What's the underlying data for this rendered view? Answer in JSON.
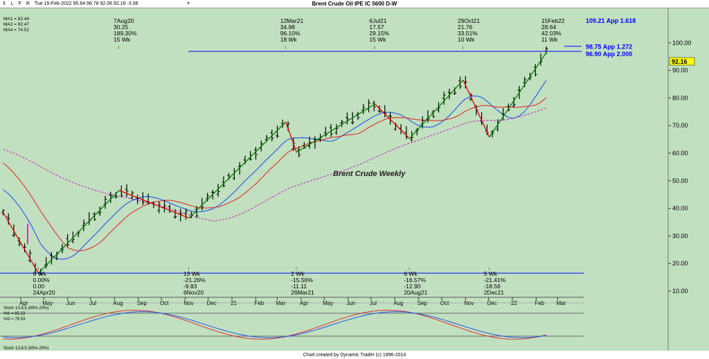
{
  "window": {
    "title": "Brent Crude Oil IPE IC 5600 D-W",
    "toolbar_items": [
      "L",
      "F",
      "R"
    ],
    "bar_info": "Tue 15-Feb-2022   95.64   96.78   92.06   92.16   -3.08"
  },
  "legend": {
    "ma1_label": "MA1 = 82.44",
    "ma2_label": "MA2 = 82.47",
    "ma4_label": "MA4 = 74.52",
    "stoch_title": "Stoch 13,8,5 (80%-20%)",
    "k_label": "%K = 85.23",
    "d_label": "%D = 79.53",
    "stoch_bottom": "Stoch 13,8,5 (80%-20%)"
  },
  "colors": {
    "background": "#c1e0bf",
    "up_swing": "#008000",
    "down_swing": "#e00000",
    "ma1": "#2255ee",
    "ma2": "#e03030",
    "ma4": "#c030c0",
    "level_line": "#0000ff",
    "price_tag": "#ffff00"
  },
  "price_tag": "92.16",
  "footer": "Chart created by Dynamic Trader  (c) 1996-2014",
  "chart_data": {
    "type": "ohlc",
    "title": "Brent Crude Weekly",
    "y_range": [
      8,
      112
    ],
    "y_ticks": [
      "10.00",
      "20.00",
      "30.00",
      "40.00",
      "50.00",
      "60.00",
      "70.00",
      "80.00",
      "90.00",
      "100.00"
    ],
    "x_tick_labels": [
      "Apr",
      "May",
      "Jun",
      "Jul",
      "Aug",
      "Sep",
      "Oct",
      "Nov",
      "Dec",
      "21",
      "Feb",
      "Mar",
      "Apr",
      "May",
      "Jun",
      "Jul",
      "Aug",
      "Sep",
      "Oct",
      "Nov",
      "Dec",
      "22",
      "Feb",
      "Mar"
    ],
    "last_close": 92.16,
    "level_lines": [
      {
        "price": 98.75,
        "label": "98.75 App 1.272",
        "extends_left": false
      },
      {
        "price": 96.9,
        "label": "96.90 App 2.000",
        "extends_left": true
      },
      {
        "price": 16.5,
        "label": "",
        "extends_left": true
      }
    ],
    "top_clipped_label": "109.21 App 1.618",
    "swing_points": [
      {
        "date": "9-Mar-2020",
        "price": 38.5
      },
      {
        "date": "24-Apr-2020",
        "price": 16.5
      },
      {
        "date": "7-Aug-2020",
        "price": 46.5
      },
      {
        "date": "6-Nov-2020",
        "price": 36.5
      },
      {
        "date": "12-Mar-2021",
        "price": 71.3
      },
      {
        "date": "26-Mar-2021",
        "price": 60.3
      },
      {
        "date": "6-Jul-2021",
        "price": 77.8
      },
      {
        "date": "20-Aug-2021",
        "price": 65.3
      },
      {
        "date": "29-Oct-2021",
        "price": 86.5
      },
      {
        "date": "2-Dec-2021",
        "price": 65.8
      },
      {
        "date": "15-Feb-2022",
        "price": 96.8
      }
    ],
    "high_annotations": [
      {
        "lines": [
          "7Aug20",
          "30.25",
          "189.30%",
          "15 Wk"
        ]
      },
      {
        "lines": [
          "12Mar21",
          "34.98",
          "96.10%",
          "18 Wk"
        ]
      },
      {
        "lines": [
          "6Jul21",
          "17.57",
          "29.15%",
          "15 Wk"
        ]
      },
      {
        "lines": [
          "29Oct21",
          "21.76",
          "33.51%",
          "10 Wk"
        ]
      },
      {
        "lines": [
          "15Feb22",
          "28.64",
          "42.03%",
          "11 Wk"
        ]
      }
    ],
    "low_annotations": [
      {
        "lines": [
          "0 Wk",
          "0.00%",
          "0.00",
          "24Apr20"
        ]
      },
      {
        "lines": [
          "13 Wk",
          "-21.26%",
          "-9.83",
          "6Nov20"
        ]
      },
      {
        "lines": [
          "2 Wk",
          "-15.56%",
          "-11.11",
          "26Mar21"
        ]
      },
      {
        "lines": [
          "6 Wk",
          "-16.57%",
          "-12.90",
          "20Aug21"
        ]
      },
      {
        "lines": [
          "5 Wk",
          "-21.41%",
          "-18.56",
          "2Dec21"
        ]
      }
    ],
    "bars_note": "weekly OHLC bars interpolated along swing path",
    "ma1_current": 82.44,
    "ma2_current": 82.47,
    "ma4_current": 74.52,
    "stochastic": {
      "k": 85.23,
      "d": 79.53,
      "levels": [
        20,
        80
      ]
    }
  }
}
